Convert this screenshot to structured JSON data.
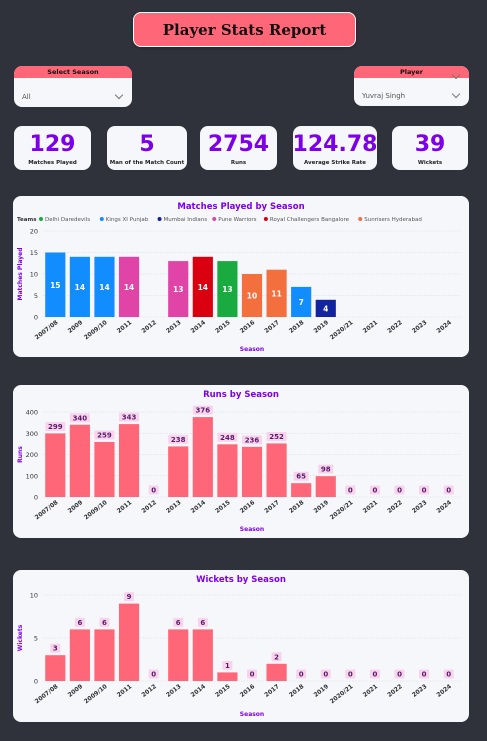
{
  "title": "Player Stats Report",
  "filters": {
    "season_label": "Select Season",
    "season_value": "All",
    "player_label": "Player",
    "player_value": "Yuvraj Singh"
  },
  "kpis": [
    {
      "value": "129",
      "label": "Matches Played"
    },
    {
      "value": "5",
      "label": "Man of the Match Count"
    },
    {
      "value": "2754",
      "label": "Runs"
    },
    {
      "value": "124.78",
      "label": "Average Strike Rate"
    },
    {
      "value": "39",
      "label": "Wickets"
    }
  ],
  "colors": {
    "accent": "#ff6677",
    "kpi_value": "#7d00e8",
    "chart_title": "#7d00e8",
    "bar": "#ff6677",
    "label_bg": "#f7d3ec"
  },
  "chart_data": [
    {
      "type": "bar",
      "title": "Matches Played by Season",
      "xlabel": "Season",
      "ylabel": "Matches Played",
      "ylim": [
        0,
        20
      ],
      "yticks": [
        0,
        5,
        10,
        15,
        20
      ],
      "legend_title": "Teams",
      "legend_position": "top-left",
      "legend": [
        {
          "name": "Delhi Daredevils",
          "color": "#1aab40"
        },
        {
          "name": "Kings XI Punjab",
          "color": "#118dff"
        },
        {
          "name": "Mumbai Indians",
          "color": "#12239e"
        },
        {
          "name": "Pune Warriors",
          "color": "#e044a7"
        },
        {
          "name": "Royal Challengers Bangalore",
          "color": "#d9000f"
        },
        {
          "name": "Sunrisers Hyderabad",
          "color": "#f36f3e"
        }
      ],
      "categories": [
        "2007/08",
        "2009",
        "2009/10",
        "2011",
        "2012",
        "2013",
        "2014",
        "2015",
        "2016",
        "2017",
        "2018",
        "2019",
        "2020/21",
        "2021",
        "2022",
        "2023",
        "2024"
      ],
      "values": [
        15,
        14,
        14,
        14,
        null,
        13,
        14,
        13,
        10,
        11,
        7,
        4,
        null,
        null,
        null,
        null,
        null
      ],
      "bar_colors": [
        "#118dff",
        "#118dff",
        "#118dff",
        "#e044a7",
        null,
        "#e044a7",
        "#d9000f",
        "#1aab40",
        "#f36f3e",
        "#f36f3e",
        "#118dff",
        "#12239e",
        null,
        null,
        null,
        null,
        null
      ],
      "grid": true
    },
    {
      "type": "bar",
      "title": "Runs by Season",
      "xlabel": "Season",
      "ylabel": "Runs",
      "ylim": [
        0,
        400
      ],
      "yticks": [
        0,
        100,
        200,
        300,
        400
      ],
      "categories": [
        "2007/08",
        "2009",
        "2009/10",
        "2011",
        "2012",
        "2013",
        "2014",
        "2015",
        "2016",
        "2017",
        "2018",
        "2019",
        "2020/21",
        "2021",
        "2022",
        "2023",
        "2024"
      ],
      "values": [
        299,
        340,
        259,
        343,
        0,
        238,
        376,
        248,
        236,
        252,
        65,
        98,
        0,
        0,
        0,
        0,
        0
      ],
      "grid": true
    },
    {
      "type": "bar",
      "title": "Wickets by Season",
      "xlabel": "Season",
      "ylabel": "Wickets",
      "ylim": [
        0,
        10
      ],
      "yticks": [
        0,
        5,
        10
      ],
      "categories": [
        "2007/08",
        "2009",
        "2009/10",
        "2011",
        "2012",
        "2013",
        "2014",
        "2015",
        "2016",
        "2017",
        "2018",
        "2019",
        "2020/21",
        "2021",
        "2022",
        "2023",
        "2024"
      ],
      "values": [
        3,
        6,
        6,
        9,
        0,
        6,
        6,
        1,
        0,
        2,
        0,
        0,
        0,
        0,
        0,
        0,
        0
      ],
      "grid": true
    }
  ]
}
